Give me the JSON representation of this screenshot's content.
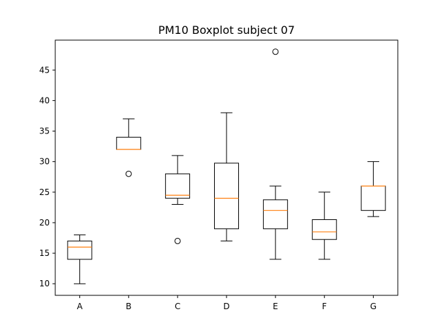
{
  "chart_data": {
    "type": "boxplot",
    "title": "PM10 Boxplot subject 07",
    "xlabel": "",
    "ylabel": "",
    "ylim": [
      8.1,
      49.9
    ],
    "yticks": [
      10,
      15,
      20,
      25,
      30,
      35,
      40,
      45
    ],
    "categories": [
      "A",
      "B",
      "C",
      "D",
      "E",
      "F",
      "G"
    ],
    "boxes": [
      {
        "label": "A",
        "whislo": 10,
        "q1": 14,
        "med": 16,
        "q3": 17,
        "whishi": 18,
        "fliers": []
      },
      {
        "label": "B",
        "whislo": 32,
        "q1": 32,
        "med": 32,
        "q3": 34,
        "whishi": 37,
        "fliers": [
          28
        ]
      },
      {
        "label": "C",
        "whislo": 23,
        "q1": 24,
        "med": 24.5,
        "q3": 28,
        "whishi": 31,
        "fliers": [
          17
        ]
      },
      {
        "label": "D",
        "whislo": 17,
        "q1": 19,
        "med": 24,
        "q3": 29.75,
        "whishi": 38,
        "fliers": []
      },
      {
        "label": "E",
        "whislo": 14,
        "q1": 19,
        "med": 22,
        "q3": 23.75,
        "whishi": 26,
        "fliers": [
          48
        ]
      },
      {
        "label": "F",
        "whislo": 14,
        "q1": 17.25,
        "med": 18.5,
        "q3": 20.5,
        "whishi": 25,
        "fliers": []
      },
      {
        "label": "G",
        "whislo": 21,
        "q1": 22,
        "med": 26,
        "q3": 26,
        "whishi": 30,
        "fliers": []
      }
    ],
    "grid": false,
    "colors": {
      "box": "#000000",
      "median": "#ff7f0e",
      "flier": "#000000"
    }
  }
}
